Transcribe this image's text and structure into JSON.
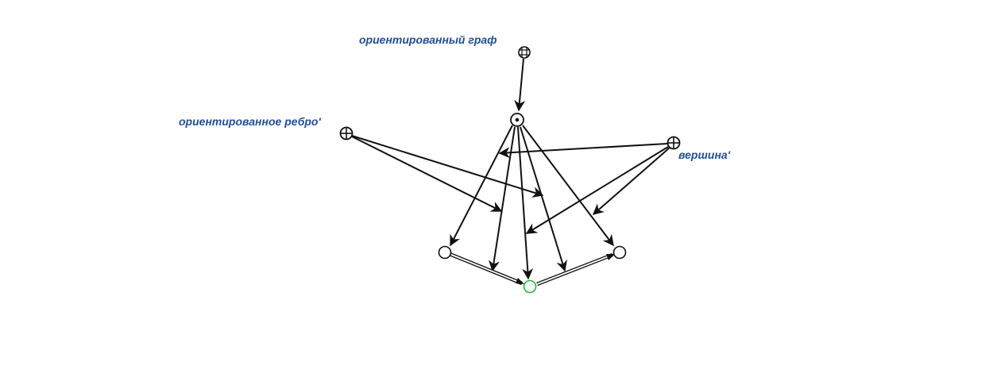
{
  "diagram": {
    "colors": {
      "label": "#1f4e9c",
      "edge": "#111111",
      "node_stroke": "#111111",
      "node_highlight": "#22b83a",
      "background": "#ffffff"
    },
    "labels": {
      "directed_graph": "ориентированный граф",
      "directed_edge": "ориентированное ребро'",
      "vertex": "вершина'"
    },
    "nodes": [
      {
        "id": "directed-graph",
        "kind": "class-node",
        "icon": "grid-circle-icon"
      },
      {
        "id": "structure",
        "kind": "structure-node",
        "icon": "dot-circle-icon"
      },
      {
        "id": "directed-edge",
        "kind": "role-node",
        "icon": "plus-circle-icon"
      },
      {
        "id": "vertex",
        "kind": "role-node",
        "icon": "plus-circle-icon"
      },
      {
        "id": "left-vertex",
        "kind": "element-node",
        "icon": "empty-circle-icon"
      },
      {
        "id": "center-vertex",
        "kind": "element-node",
        "icon": "highlighted-circle-icon"
      },
      {
        "id": "right-vertex",
        "kind": "element-node",
        "icon": "empty-circle-icon"
      }
    ]
  }
}
